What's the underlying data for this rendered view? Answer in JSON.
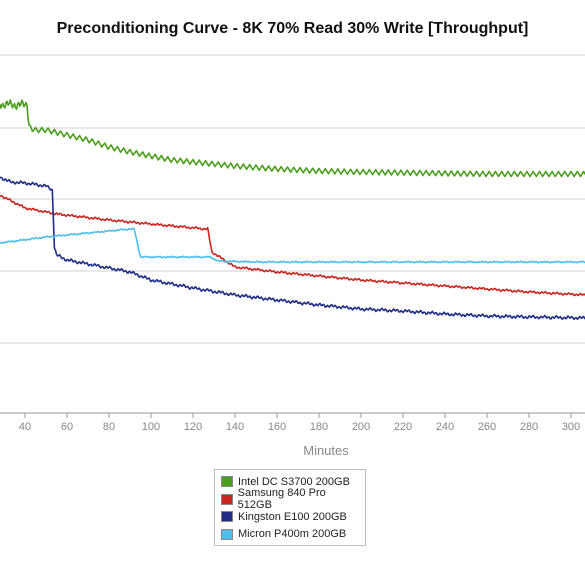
{
  "chart_data": {
    "type": "line",
    "title": "Preconditioning Curve - 8K 70% Read 30% Write [Throughput]",
    "xlabel": "Minutes",
    "ylabel": "",
    "x_ticks": [
      40,
      60,
      80,
      100,
      120,
      140,
      160,
      180,
      200,
      220,
      240,
      260,
      280,
      300
    ],
    "xlim": [
      28,
      307
    ],
    "grid": true,
    "legend_position": "bottom",
    "series": [
      {
        "name": "Intel DC S3700 200GB",
        "color": "#4a9e1c",
        "points": [
          [
            28,
            104
          ],
          [
            38,
            105
          ],
          [
            41,
            104
          ],
          [
            42,
            125
          ],
          [
            44,
            130
          ],
          [
            50,
            130
          ],
          [
            60,
            135
          ],
          [
            70,
            140
          ],
          [
            80,
            147
          ],
          [
            90,
            152
          ],
          [
            100,
            156
          ],
          [
            110,
            160
          ],
          [
            120,
            162
          ],
          [
            140,
            166
          ],
          [
            160,
            169
          ],
          [
            180,
            171
          ],
          [
            200,
            172
          ],
          [
            230,
            173
          ],
          [
            260,
            174
          ],
          [
            290,
            174
          ],
          [
            307,
            174
          ]
        ],
        "noise": 5,
        "period": 3
      },
      {
        "name": "Samsung 840 Pro 512GB",
        "color": "#c8251d",
        "points": [
          [
            28,
            195
          ],
          [
            40,
            208
          ],
          [
            55,
            214
          ],
          [
            80,
            220
          ],
          [
            100,
            224
          ],
          [
            126,
            229
          ],
          [
            127,
            229
          ],
          [
            129,
            252
          ],
          [
            140,
            267
          ],
          [
            160,
            272
          ],
          [
            180,
            276
          ],
          [
            200,
            280
          ],
          [
            220,
            283
          ],
          [
            240,
            286
          ],
          [
            260,
            289
          ],
          [
            280,
            292
          ],
          [
            307,
            295
          ]
        ],
        "noise": 1.3,
        "period": 2
      },
      {
        "name": "Kingston E100 200GB",
        "color": "#1f2d88",
        "points": [
          [
            28,
            177
          ],
          [
            33,
            182
          ],
          [
            40,
            183
          ],
          [
            50,
            186
          ],
          [
            53,
            190
          ],
          [
            54,
            247
          ],
          [
            55,
            255
          ],
          [
            60,
            260
          ],
          [
            80,
            268
          ],
          [
            90,
            272
          ],
          [
            100,
            280
          ],
          [
            120,
            288
          ],
          [
            140,
            295
          ],
          [
            160,
            300
          ],
          [
            180,
            305
          ],
          [
            200,
            309
          ],
          [
            220,
            311
          ],
          [
            240,
            314
          ],
          [
            260,
            316
          ],
          [
            280,
            317
          ],
          [
            307,
            318
          ]
        ],
        "noise": 1.8,
        "period": 2
      },
      {
        "name": "Micron P400m 200GB",
        "color": "#4dbdec",
        "points": [
          [
            28,
            243
          ],
          [
            50,
            237
          ],
          [
            70,
            233
          ],
          [
            90,
            229
          ],
          [
            92,
            229
          ],
          [
            95,
            257
          ],
          [
            110,
            257
          ],
          [
            128,
            257
          ],
          [
            132,
            261
          ],
          [
            150,
            262
          ],
          [
            180,
            262
          ],
          [
            220,
            262
          ],
          [
            260,
            262
          ],
          [
            307,
            262
          ]
        ],
        "noise": 0.8,
        "period": 3
      }
    ]
  }
}
